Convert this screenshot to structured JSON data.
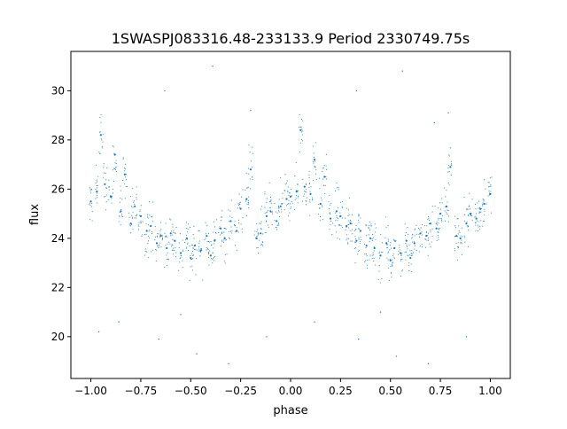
{
  "chart_data": {
    "type": "scatter",
    "title": "1SWASPJ083316.48-233133.9 Period 2330749.75s",
    "xlabel": "phase",
    "ylabel": "flux",
    "xlim": [
      -1.1,
      1.1
    ],
    "ylim": [
      18.3,
      31.6
    ],
    "xticks": [
      -1.0,
      -0.75,
      -0.5,
      -0.25,
      0.0,
      0.25,
      0.5,
      0.75,
      1.0
    ],
    "xtick_labels": [
      "−1.00",
      "−0.75",
      "−0.50",
      "−0.25",
      "0.00",
      "0.25",
      "0.50",
      "0.75",
      "1.00"
    ],
    "yticks": [
      20,
      22,
      24,
      26,
      28,
      30
    ],
    "ytick_labels": [
      "20",
      "22",
      "24",
      "26",
      "28",
      "30"
    ],
    "grid": false,
    "marker_color": "#1f77b4",
    "series": [
      {
        "x": [
          -1.0,
          -0.97,
          -0.95,
          -0.93,
          -0.9,
          -0.88,
          -0.85,
          -0.83,
          -0.8,
          -0.78,
          -0.75,
          -0.72,
          -0.7,
          -0.67,
          -0.65,
          -0.62,
          -0.6,
          -0.58,
          -0.55,
          -0.52,
          -0.5,
          -0.48,
          -0.45,
          -0.42,
          -0.4,
          -0.38,
          -0.35,
          -0.33,
          -0.3,
          -0.27,
          -0.25,
          -0.22,
          -0.2,
          -0.17,
          -0.15,
          -0.12,
          -0.1,
          -0.07,
          -0.05,
          -0.02,
          0.0,
          0.03,
          0.05,
          0.07,
          0.1,
          0.12,
          0.15,
          0.17,
          0.2,
          0.23,
          0.25,
          0.28,
          0.3,
          0.33,
          0.35,
          0.38,
          0.4,
          0.42,
          0.45,
          0.48,
          0.5,
          0.52,
          0.55,
          0.58,
          0.6,
          0.62,
          0.65,
          0.68,
          0.7,
          0.73,
          0.75,
          0.78,
          0.8,
          0.83,
          0.85,
          0.88,
          0.9,
          0.93,
          0.95,
          0.97,
          1.0
        ],
        "y": [
          25.5,
          25.9,
          28.2,
          26.2,
          25.7,
          27.4,
          25.1,
          26.6,
          24.6,
          25.3,
          24.9,
          24.3,
          24.5,
          23.8,
          24.1,
          23.6,
          24.2,
          23.9,
          23.4,
          24.0,
          23.2,
          23.7,
          23.5,
          24.1,
          23.3,
          23.9,
          24.4,
          24.0,
          24.7,
          24.3,
          25.2,
          25.6,
          26.8,
          24.0,
          24.2,
          24.9,
          25.1,
          24.7,
          25.3,
          25.6,
          25.7,
          25.9,
          28.4,
          26.1,
          25.8,
          27.2,
          25.4,
          26.5,
          24.8,
          25.1,
          24.9,
          24.5,
          24.6,
          23.9,
          24.3,
          23.7,
          24.0,
          23.6,
          23.3,
          23.8,
          23.1,
          23.6,
          23.4,
          23.9,
          23.2,
          23.8,
          24.2,
          24.1,
          24.6,
          24.4,
          25.0,
          25.3,
          26.9,
          24.1,
          24.0,
          24.6,
          25.0,
          24.8,
          25.2,
          25.4,
          25.8
        ]
      }
    ],
    "outlier_points": [
      [
        -0.63,
        30.0
      ],
      [
        -0.39,
        31.0
      ],
      [
        0.33,
        30.0
      ],
      [
        0.56,
        30.8
      ],
      [
        0.72,
        28.7
      ],
      [
        -0.86,
        20.6
      ],
      [
        -0.66,
        19.9
      ],
      [
        -0.47,
        19.3
      ],
      [
        -0.31,
        18.9
      ],
      [
        -0.12,
        20.0
      ],
      [
        0.12,
        20.6
      ],
      [
        0.34,
        19.9
      ],
      [
        0.53,
        19.2
      ],
      [
        0.69,
        18.9
      ],
      [
        0.88,
        20.0
      ],
      [
        -0.55,
        20.9
      ],
      [
        0.45,
        21.0
      ],
      [
        -0.2,
        29.2
      ],
      [
        0.79,
        29.1
      ],
      [
        -0.96,
        20.2
      ]
    ]
  }
}
